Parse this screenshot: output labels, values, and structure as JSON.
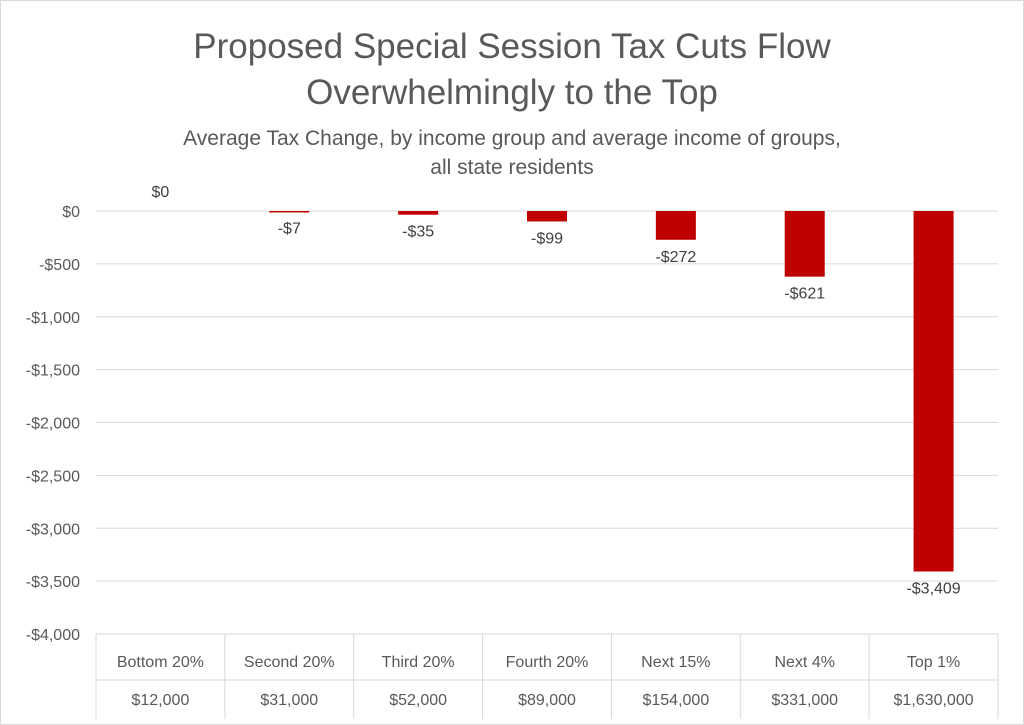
{
  "chart_data": {
    "type": "bar",
    "title": "Proposed Special Session Tax Cuts Flow Overwhelmingly to the Top",
    "title_lines": [
      "Proposed Special Session Tax Cuts Flow",
      "Overwhelmingly to the Top"
    ],
    "subtitle": "Average Tax Change, by income group and average income of groups, all state residents",
    "subtitle_lines": [
      "Average Tax Change, by income group and average income of groups,",
      "all state residents"
    ],
    "categories": [
      "Bottom 20%",
      "Second 20%",
      "Third 20%",
      "Fourth 20%",
      "Next 15%",
      "Next 4%",
      "Top 1%"
    ],
    "category_incomes": [
      "$12,000",
      "$31,000",
      "$52,000",
      "$89,000",
      "$154,000",
      "$331,000",
      "$1,630,000"
    ],
    "values": [
      0,
      -7,
      -35,
      -99,
      -272,
      -621,
      -3409
    ],
    "value_labels": [
      "$0",
      "-$7",
      "-$35",
      "-$99",
      "-$272",
      "-$621",
      "-$3,409"
    ],
    "ylim": [
      -4000,
      0
    ],
    "yticks": [
      0,
      -500,
      -1000,
      -1500,
      -2000,
      -2500,
      -3000,
      -3500,
      -4000
    ],
    "ytick_labels": [
      "$0",
      "-$500",
      "-$1,000",
      "-$1,500",
      "-$2,000",
      "-$2,500",
      "-$3,000",
      "-$3,500",
      "-$4,000"
    ],
    "xlabel": "",
    "ylabel": "",
    "grid": true,
    "legend": "none",
    "bar_color": "#c00000"
  }
}
